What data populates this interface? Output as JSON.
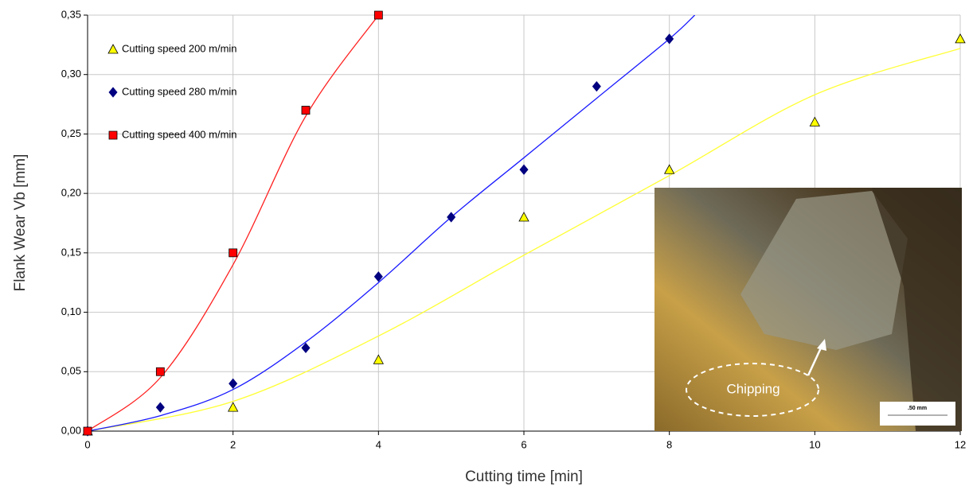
{
  "chart_data": {
    "type": "scatter",
    "x_label": "Cutting time [min]",
    "y_label": "Flank Wear Vb [mm]",
    "xlim": [
      0,
      12
    ],
    "xticks": [
      0,
      2,
      4,
      6,
      8,
      10,
      12
    ],
    "ylim": [
      0,
      0.35
    ],
    "yticks": [
      {
        "value": 0,
        "label": "0,00"
      },
      {
        "value": 0.05,
        "label": "0,05"
      },
      {
        "value": 0.1,
        "label": "0,10"
      },
      {
        "value": 0.15,
        "label": "0,15"
      },
      {
        "value": 0.2,
        "label": "0,20"
      },
      {
        "value": 0.25,
        "label": "0,25"
      },
      {
        "value": 0.3,
        "label": "0,30"
      },
      {
        "value": 0.35,
        "label": "0,35"
      }
    ],
    "grid": true,
    "legend": "upper left",
    "series": [
      {
        "name": "Cutting speed 200 m/min",
        "color": "#ffff00",
        "marker": "triangle",
        "line_color": "#ffff33",
        "x": [
          0,
          2,
          4,
          6,
          8,
          10,
          12
        ],
        "values": [
          0,
          0.02,
          0.06,
          0.18,
          0.22,
          0.26,
          0.33
        ],
        "trend": {
          "x": [
            0,
            2,
            4,
            6,
            8,
            10,
            12
          ],
          "values": [
            0,
            0.025,
            0.08,
            0.148,
            0.215,
            0.283,
            0.322
          ]
        }
      },
      {
        "name": "Cutting speed 280 m/min",
        "color": "#000080",
        "marker": "diamond",
        "line_color": "#1a1aff",
        "x": [
          0,
          1,
          2,
          3,
          4,
          5,
          6,
          7,
          8
        ],
        "values": [
          0,
          0.02,
          0.04,
          0.07,
          0.13,
          0.18,
          0.22,
          0.29,
          0.33
        ],
        "trend": {
          "x": [
            0,
            1,
            2,
            3,
            4,
            5,
            6,
            7,
            8,
            8.35
          ],
          "values": [
            0,
            0.013,
            0.035,
            0.075,
            0.125,
            0.18,
            0.23,
            0.28,
            0.33,
            0.35
          ]
        }
      },
      {
        "name": "Cutting speed 400 m/min",
        "color": "#ff0000",
        "marker": "square",
        "line_color": "#ff2020",
        "x": [
          0,
          1,
          2,
          3,
          4
        ],
        "values": [
          0,
          0.05,
          0.15,
          0.27,
          0.35
        ],
        "trend": {
          "x": [
            0,
            1,
            2,
            3,
            4
          ],
          "values": [
            0,
            0.045,
            0.14,
            0.265,
            0.35
          ]
        }
      }
    ],
    "inset": {
      "label": "Chipping",
      "scale_bar": ".50 mm"
    }
  }
}
